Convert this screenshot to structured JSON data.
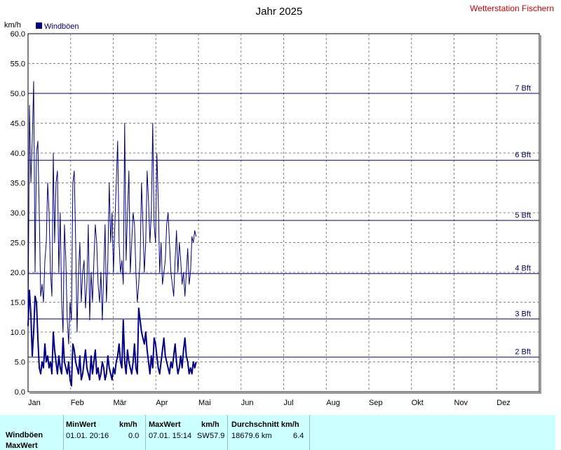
{
  "header": {
    "title": "Jahr 2025",
    "station": "Wetterstation Fischern",
    "unit": "km/h"
  },
  "legend": {
    "label": "Windböen",
    "color": "#000080"
  },
  "chart_data": {
    "type": "line",
    "title": "Jahr 2025",
    "ylabel": "km/h",
    "ylim": [
      0,
      60
    ],
    "y_ticks": [
      "0.0",
      "5.0",
      "10.0",
      "15.0",
      "20.0",
      "25.0",
      "30.0",
      "35.0",
      "40.0",
      "45.0",
      "50.0",
      "55.0",
      "60.0"
    ],
    "x_ticks": [
      "Jan",
      "Feb",
      "Mär",
      "Apr",
      "Mai",
      "Jun",
      "Jul",
      "Aug",
      "Sep",
      "Okt",
      "Nov",
      "Dez"
    ],
    "grid": true,
    "legend_position": "top-left",
    "reference_lines": [
      {
        "label": "2 Bft",
        "value": 5.8
      },
      {
        "label": "3 Bft",
        "value": 12.2
      },
      {
        "label": "4 Bft",
        "value": 19.8
      },
      {
        "label": "5 Bft",
        "value": 28.7
      },
      {
        "label": "6 Bft",
        "value": 38.8
      },
      {
        "label": "7 Bft",
        "value": 50.0
      }
    ],
    "series": [
      {
        "name": "Windböen",
        "color": "#000080",
        "x_days": [
          0,
          1,
          2,
          3,
          4,
          5,
          6,
          7,
          8,
          9,
          10,
          11,
          12,
          13,
          14,
          15,
          16,
          17,
          18,
          19,
          20,
          21,
          22,
          23,
          24,
          25,
          26,
          27,
          28,
          29,
          30,
          31,
          32,
          33,
          34,
          35,
          36,
          37,
          38,
          39,
          40,
          41,
          42,
          43,
          44,
          45,
          46,
          47,
          48,
          49,
          50,
          51,
          52,
          53,
          54,
          55,
          56,
          57,
          58,
          59,
          60,
          61,
          62,
          63,
          64,
          65,
          66,
          67,
          68,
          69,
          70,
          71,
          72,
          73,
          74,
          75,
          76,
          77,
          78,
          79,
          80,
          81,
          82,
          83,
          84,
          85,
          86,
          87,
          88,
          89,
          90,
          91,
          92,
          93,
          94,
          95,
          96,
          97,
          98,
          99,
          100,
          101,
          102,
          103,
          104,
          105,
          106,
          107,
          108,
          109,
          110,
          111,
          112,
          113,
          114,
          115,
          116,
          117,
          118,
          119,
          120
        ],
        "values": [
          10,
          48,
          35,
          42,
          52,
          20,
          40,
          42,
          30,
          16,
          18,
          15,
          22,
          25,
          35,
          30,
          20,
          16,
          40,
          25,
          35,
          37,
          20,
          30,
          15,
          10,
          28,
          22,
          12,
          8,
          15,
          12,
          35,
          37,
          25,
          10,
          20,
          25,
          15,
          20,
          22,
          14,
          18,
          28,
          12,
          20,
          15,
          22,
          28,
          25,
          18,
          15,
          20,
          12,
          20,
          28,
          15,
          22,
          35,
          25,
          30,
          20,
          28,
          35,
          42,
          25,
          20,
          22,
          18,
          45,
          22,
          30,
          37,
          20,
          25,
          30,
          28,
          20,
          15,
          18,
          22,
          35,
          28,
          20,
          25,
          37,
          32,
          25,
          30,
          45,
          28,
          25,
          40,
          32,
          20,
          25,
          18,
          20,
          22,
          28,
          30,
          25,
          20,
          18,
          16,
          22,
          27,
          20,
          25,
          22,
          18,
          20,
          16,
          20,
          24,
          18,
          20,
          26,
          25,
          27,
          26
        ],
        "y_unit": "km/h"
      },
      {
        "name": "Wind",
        "color": "#000080",
        "x_days": [
          0,
          1,
          2,
          3,
          4,
          5,
          6,
          7,
          8,
          9,
          10,
          11,
          12,
          13,
          14,
          15,
          16,
          17,
          18,
          19,
          20,
          21,
          22,
          23,
          24,
          25,
          26,
          27,
          28,
          29,
          30,
          31,
          32,
          33,
          34,
          35,
          36,
          37,
          38,
          39,
          40,
          41,
          42,
          43,
          44,
          45,
          46,
          47,
          48,
          49,
          50,
          51,
          52,
          53,
          54,
          55,
          56,
          57,
          58,
          59,
          60,
          61,
          62,
          63,
          64,
          65,
          66,
          67,
          68,
          69,
          70,
          71,
          72,
          73,
          74,
          75,
          76,
          77,
          78,
          79,
          80,
          81,
          82,
          83,
          84,
          85,
          86,
          87,
          88,
          89,
          90,
          91,
          92,
          93,
          94,
          95,
          96,
          97,
          98,
          99,
          100,
          101,
          102,
          103,
          104,
          105,
          106,
          107,
          108,
          109,
          110,
          111,
          112,
          113,
          114,
          115,
          116,
          117,
          118,
          119,
          120
        ],
        "values": [
          11,
          17,
          13,
          6,
          10,
          16,
          15,
          9,
          4,
          3,
          5,
          4,
          8,
          5,
          6,
          4,
          5,
          3,
          10,
          7,
          5,
          3,
          6,
          4,
          3,
          9,
          5,
          4,
          3,
          5,
          2,
          1,
          8,
          7,
          5,
          4,
          3,
          6,
          2,
          3,
          5,
          7,
          4,
          3,
          2,
          6,
          3,
          5,
          7,
          3,
          4,
          2,
          3,
          5,
          4,
          2,
          3,
          6,
          4,
          3,
          2,
          4,
          3,
          5,
          6,
          8,
          5,
          4,
          12,
          5,
          3,
          7,
          5,
          4,
          3,
          5,
          8,
          4,
          3,
          14,
          12,
          10,
          9,
          8,
          10,
          7,
          5,
          3,
          6,
          4,
          9,
          8,
          6,
          4,
          3,
          5,
          7,
          9,
          6,
          5,
          4,
          3,
          5,
          4,
          6,
          8,
          5,
          3,
          4,
          6,
          4,
          7,
          9,
          6,
          5,
          3,
          4,
          3,
          5,
          4,
          5
        ],
        "y_unit": "km/h"
      }
    ]
  },
  "stats": {
    "row1_label": "Windböen",
    "row2_label": "MaxWert",
    "min_header": "MinWert",
    "min_unit": "km/h",
    "max_header": "MaxWert",
    "max_unit": "km/h",
    "avg_header": "Durchschnitt km/h",
    "min_date": "01.01.  20:16",
    "min_value": "0.0",
    "max_date": "07.01.  15:14",
    "max_dir": "SW",
    "max_value": "57.9",
    "avg_distance": "18679.6 km",
    "avg_value": "6.4"
  }
}
